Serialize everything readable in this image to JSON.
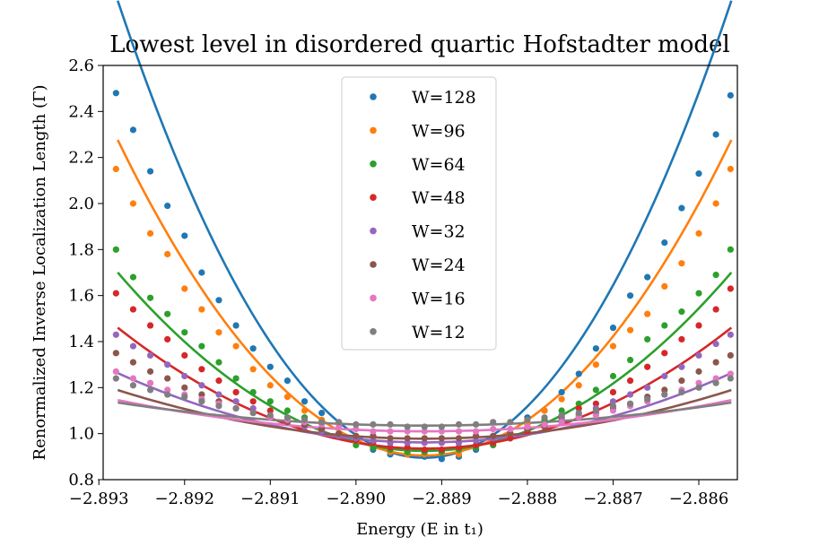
{
  "chart_data": {
    "type": "scatter",
    "title": "Lowest level in disordered quartic Hofstadter model",
    "xlabel": "Energy (E in t₁)",
    "ylabel": "Renormalized Inverse Localization Length (Γ)",
    "xlim": [
      -2.89295,
      -2.88555
    ],
    "ylim": [
      0.8,
      2.6
    ],
    "xticks": [
      "−2.893",
      "−2.892",
      "−2.891",
      "−2.890",
      "−2.889",
      "−2.888",
      "−2.887",
      "−2.886"
    ],
    "xtick_values": [
      -2.893,
      -2.892,
      -2.891,
      -2.89,
      -2.889,
      -2.888,
      -2.887,
      -2.886
    ],
    "yticks": [
      "0.8",
      "1.0",
      "1.2",
      "1.4",
      "1.6",
      "1.8",
      "2.0",
      "2.2",
      "2.4",
      "2.6"
    ],
    "ytick_values": [
      0.8,
      1.0,
      1.2,
      1.4,
      1.6,
      1.8,
      2.0,
      2.2,
      2.4,
      2.6
    ],
    "grid": false,
    "legend_position": "top-center",
    "x": [
      -2.8928,
      -2.8926,
      -2.8924,
      -2.8922,
      -2.892,
      -2.8918,
      -2.8916,
      -2.8914,
      -2.8912,
      -2.891,
      -2.8908,
      -2.8906,
      -2.8904,
      -2.8902,
      -2.89,
      -2.8898,
      -2.8896,
      -2.8894,
      -2.8892,
      -2.889,
      -2.8888,
      -2.8886,
      -2.8884,
      -2.8882,
      -2.888,
      -2.8878,
      -2.8876,
      -2.8874,
      -2.8872,
      -2.887,
      -2.8868,
      -2.8866,
      -2.8864,
      -2.8862,
      -2.886,
      -2.8858
    ],
    "series": [
      {
        "name": "W=128",
        "color": "#1f77b4",
        "values": [
          2.48,
          2.32,
          2.14,
          1.99,
          1.86,
          1.7,
          1.58,
          1.47,
          1.37,
          1.29,
          1.23,
          1.14,
          1.09,
          1.0,
          0.97,
          0.93,
          0.91,
          0.91,
          0.9,
          0.89,
          0.9,
          0.93,
          0.96,
          1.0,
          1.07,
          1.1,
          1.18,
          1.26,
          1.37,
          1.46,
          1.6,
          1.68,
          1.83,
          1.98,
          2.13,
          2.3
        ],
        "fit": {
          "emin": -2.8892,
          "gmin": 0.895,
          "curv": 155000
        },
        "last": {
          "x": -2.88563,
          "y": 2.47
        }
      },
      {
        "name": "W=96",
        "color": "#ff7f0e",
        "values": [
          2.15,
          2.0,
          1.87,
          1.78,
          1.63,
          1.54,
          1.44,
          1.38,
          1.28,
          1.21,
          1.16,
          1.1,
          1.06,
          1.0,
          0.96,
          0.94,
          0.92,
          0.91,
          0.91,
          0.92,
          0.91,
          0.94,
          0.95,
          0.99,
          1.04,
          1.1,
          1.15,
          1.21,
          1.3,
          1.38,
          1.45,
          1.52,
          1.64,
          1.74,
          1.87,
          2.0
        ],
        "fit": {
          "emin": -2.8892,
          "gmin": 0.905,
          "curv": 107000
        },
        "last": {
          "x": -2.88563,
          "y": 2.15
        }
      },
      {
        "name": "W=64",
        "color": "#2ca02c",
        "values": [
          1.8,
          1.68,
          1.59,
          1.52,
          1.44,
          1.38,
          1.31,
          1.24,
          1.18,
          1.14,
          1.1,
          1.07,
          1.02,
          0.99,
          0.95,
          0.94,
          0.93,
          0.92,
          0.92,
          0.92,
          0.93,
          0.94,
          0.95,
          0.98,
          1.02,
          1.06,
          1.1,
          1.13,
          1.19,
          1.25,
          1.32,
          1.41,
          1.47,
          1.53,
          1.61,
          1.69
        ],
        "fit": {
          "emin": -2.8892,
          "gmin": 0.925,
          "curv": 60500
        },
        "last": {
          "x": -2.88563,
          "y": 1.8
        }
      },
      {
        "name": "W=48",
        "color": "#d62728",
        "values": [
          1.61,
          1.54,
          1.47,
          1.41,
          1.34,
          1.28,
          1.23,
          1.18,
          1.14,
          1.1,
          1.06,
          1.04,
          1.01,
          0.99,
          0.97,
          0.96,
          0.94,
          0.94,
          0.93,
          0.93,
          0.94,
          0.95,
          0.96,
          0.98,
          1.01,
          1.04,
          1.07,
          1.11,
          1.13,
          1.18,
          1.23,
          1.29,
          1.35,
          1.41,
          1.47,
          1.54
        ],
        "fit": {
          "emin": -2.8892,
          "gmin": 0.935,
          "curv": 41000
        },
        "last": {
          "x": -2.88563,
          "y": 1.63
        }
      },
      {
        "name": "W=32",
        "color": "#9467bd",
        "values": [
          1.43,
          1.38,
          1.34,
          1.3,
          1.25,
          1.21,
          1.17,
          1.14,
          1.11,
          1.07,
          1.05,
          1.03,
          1.01,
          0.99,
          0.98,
          0.97,
          0.96,
          0.96,
          0.96,
          0.96,
          0.96,
          0.97,
          0.98,
          1.0,
          1.02,
          1.04,
          1.06,
          1.08,
          1.11,
          1.14,
          1.17,
          1.2,
          1.25,
          1.29,
          1.34,
          1.39
        ],
        "fit": {
          "emin": -2.8892,
          "gmin": 0.962,
          "curv": 23500
        },
        "last": {
          "x": -2.88563,
          "y": 1.43
        }
      },
      {
        "name": "W=24",
        "color": "#8c564b",
        "values": [
          1.35,
          1.31,
          1.27,
          1.24,
          1.2,
          1.17,
          1.14,
          1.11,
          1.09,
          1.07,
          1.05,
          1.04,
          1.02,
          1.0,
          0.99,
          0.99,
          0.98,
          0.98,
          0.98,
          0.98,
          0.98,
          0.99,
          0.99,
          1.0,
          1.02,
          1.03,
          1.05,
          1.07,
          1.09,
          1.11,
          1.13,
          1.16,
          1.19,
          1.23,
          1.27,
          1.31
        ],
        "fit": {
          "emin": -2.8892,
          "gmin": 0.978,
          "curv": 16500
        },
        "last": {
          "x": -2.88563,
          "y": 1.34
        }
      },
      {
        "name": "W=16",
        "color": "#e377c2",
        "values": [
          1.27,
          1.24,
          1.22,
          1.19,
          1.17,
          1.15,
          1.13,
          1.11,
          1.09,
          1.07,
          1.06,
          1.05,
          1.04,
          1.03,
          1.02,
          1.01,
          1.01,
          1.01,
          1.01,
          1.01,
          1.01,
          1.01,
          1.02,
          1.02,
          1.03,
          1.04,
          1.05,
          1.07,
          1.08,
          1.1,
          1.12,
          1.14,
          1.17,
          1.19,
          1.22,
          1.24
        ],
        "fit": {
          "emin": -2.8892,
          "gmin": 1.01,
          "curv": 10600
        },
        "last": {
          "x": -2.88563,
          "y": 1.26
        }
      },
      {
        "name": "W=12",
        "color": "#7f7f7f",
        "values": [
          1.24,
          1.21,
          1.19,
          1.17,
          1.16,
          1.14,
          1.12,
          1.11,
          1.09,
          1.08,
          1.07,
          1.06,
          1.05,
          1.05,
          1.04,
          1.04,
          1.04,
          1.03,
          1.03,
          1.03,
          1.04,
          1.04,
          1.05,
          1.05,
          1.06,
          1.07,
          1.08,
          1.09,
          1.1,
          1.12,
          1.13,
          1.15,
          1.17,
          1.18,
          1.2,
          1.22
        ],
        "fit": {
          "emin": -2.8892,
          "gmin": 1.035,
          "curv": 7800
        },
        "last": {
          "x": -2.88563,
          "y": 1.24
        }
      }
    ]
  }
}
